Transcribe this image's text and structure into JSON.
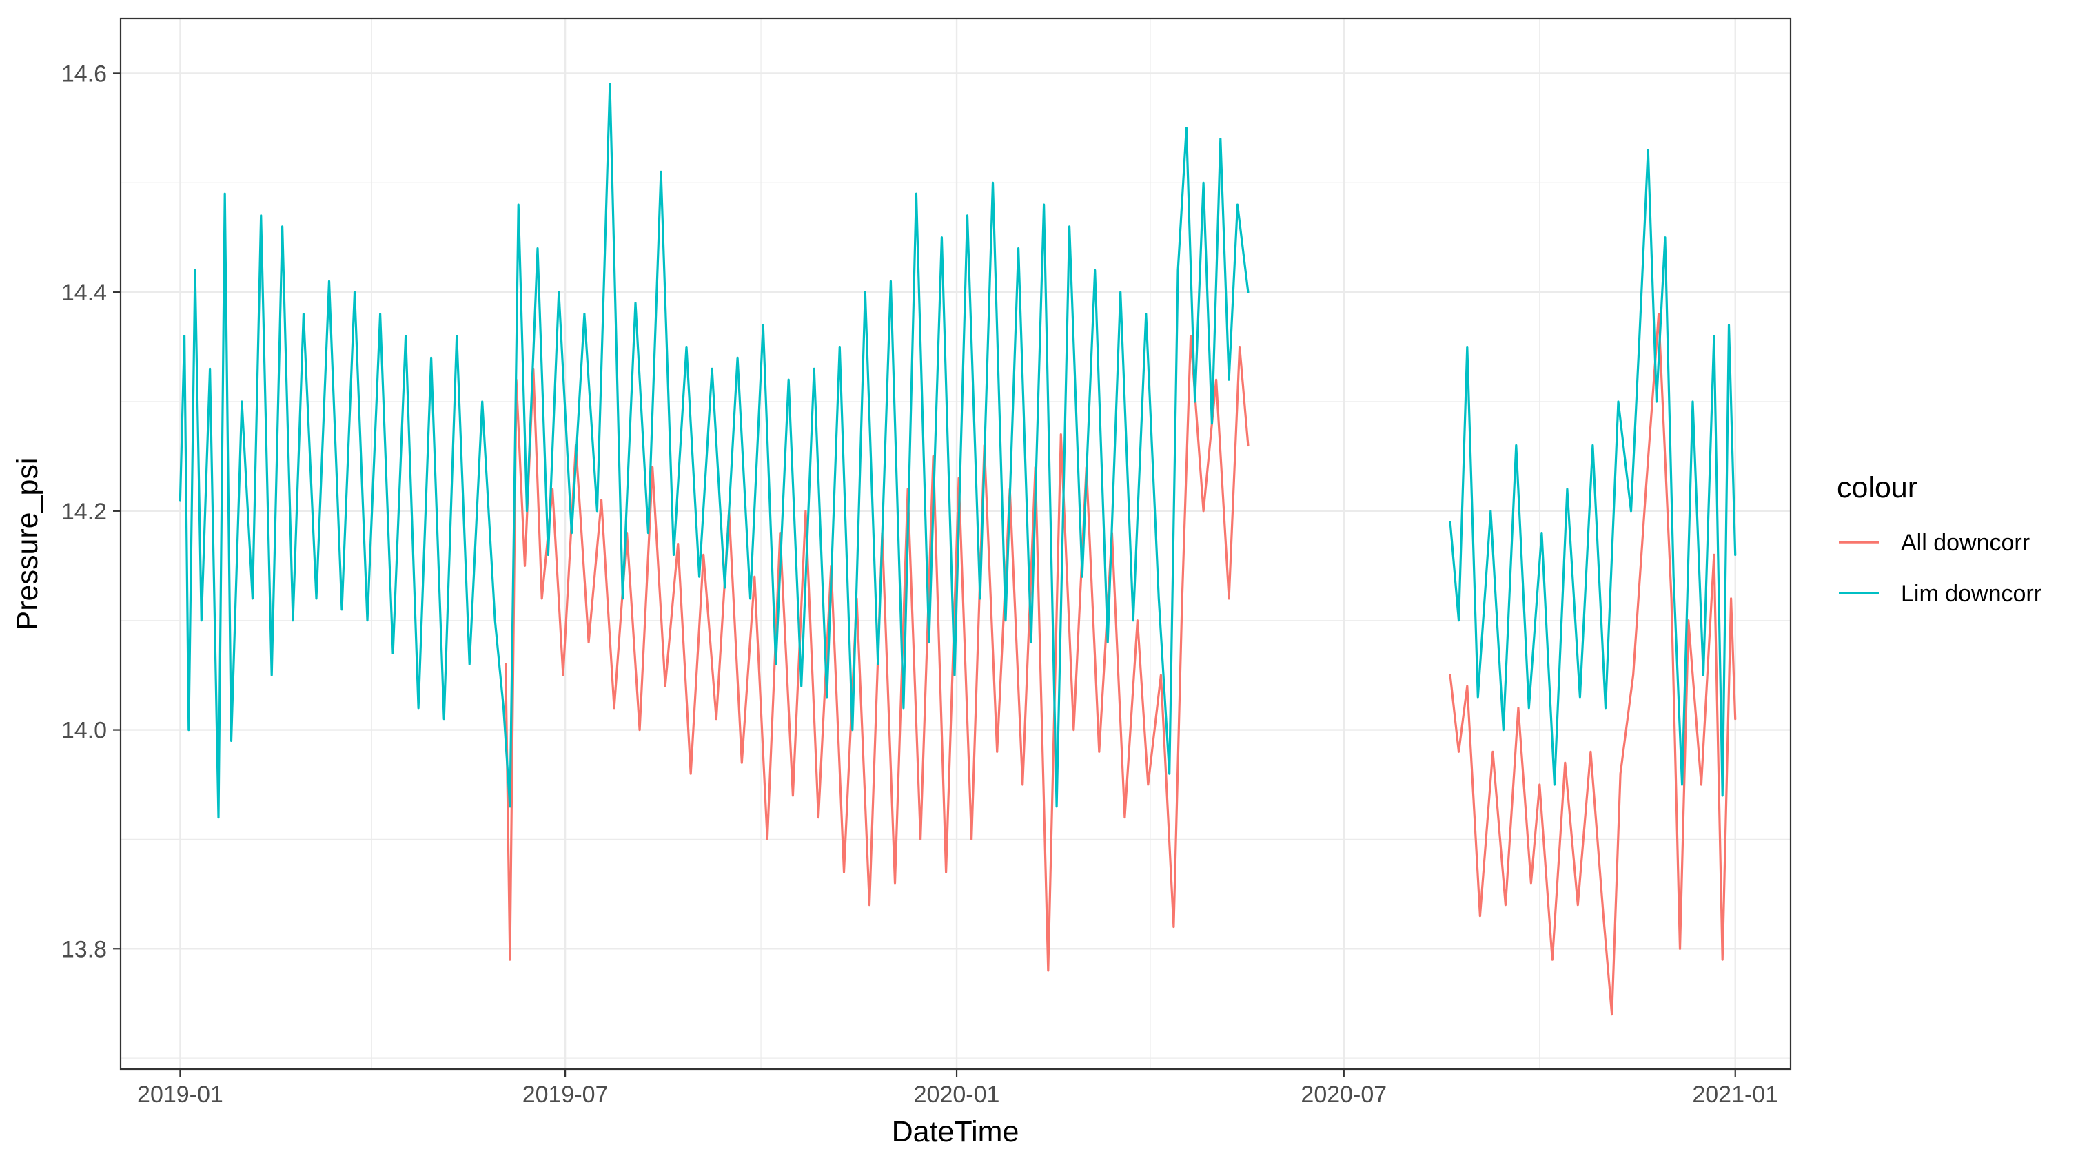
{
  "chart_data": {
    "type": "line",
    "xlabel": "DateTime",
    "ylabel": "Pressure_psi",
    "xlim": [
      "2018-12-04",
      "2021-01-27"
    ],
    "ylim": [
      13.69,
      14.65
    ],
    "x_ticks": [
      {
        "date": "2019-01-01",
        "label": "2019-01"
      },
      {
        "date": "2019-07-01",
        "label": "2019-07"
      },
      {
        "date": "2020-01-01",
        "label": "2020-01"
      },
      {
        "date": "2020-07-01",
        "label": "2020-07"
      },
      {
        "date": "2021-01-01",
        "label": "2021-01"
      }
    ],
    "x_minor_ticks": [
      "2019-04-01",
      "2019-10-01",
      "2020-04-01",
      "2020-10-01"
    ],
    "y_ticks": [
      13.8,
      14.0,
      14.2,
      14.4,
      14.6
    ],
    "y_minor_ticks": [
      13.7,
      13.9,
      14.1,
      14.3,
      14.5
    ],
    "grid": true,
    "legend": {
      "title": "colour",
      "position": "right"
    },
    "series": [
      {
        "name": "All downcorr",
        "color": "#F8766D",
        "segments": [
          [
            [
              "2019-06-03",
              14.06
            ],
            [
              "2019-06-05",
              13.79
            ],
            [
              "2019-06-08",
              14.32
            ],
            [
              "2019-06-12",
              14.15
            ],
            [
              "2019-06-16",
              14.33
            ],
            [
              "2019-06-20",
              14.12
            ],
            [
              "2019-06-25",
              14.22
            ],
            [
              "2019-06-30",
              14.05
            ],
            [
              "2019-07-06",
              14.26
            ],
            [
              "2019-07-12",
              14.08
            ],
            [
              "2019-07-18",
              14.21
            ],
            [
              "2019-07-24",
              14.02
            ],
            [
              "2019-07-30",
              14.18
            ],
            [
              "2019-08-05",
              14.0
            ],
            [
              "2019-08-11",
              14.24
            ],
            [
              "2019-08-17",
              14.04
            ],
            [
              "2019-08-23",
              14.17
            ],
            [
              "2019-08-29",
              13.96
            ],
            [
              "2019-09-04",
              14.16
            ],
            [
              "2019-09-10",
              14.01
            ],
            [
              "2019-09-16",
              14.2
            ],
            [
              "2019-09-22",
              13.97
            ],
            [
              "2019-09-28",
              14.14
            ],
            [
              "2019-10-04",
              13.9
            ],
            [
              "2019-10-10",
              14.18
            ],
            [
              "2019-10-16",
              13.94
            ],
            [
              "2019-10-22",
              14.2
            ],
            [
              "2019-10-28",
              13.92
            ],
            [
              "2019-11-03",
              14.15
            ],
            [
              "2019-11-09",
              13.87
            ],
            [
              "2019-11-15",
              14.12
            ],
            [
              "2019-11-21",
              13.84
            ],
            [
              "2019-11-27",
              14.18
            ],
            [
              "2019-12-03",
              13.86
            ],
            [
              "2019-12-09",
              14.22
            ],
            [
              "2019-12-15",
              13.9
            ],
            [
              "2019-12-21",
              14.25
            ],
            [
              "2019-12-27",
              13.87
            ],
            [
              "2020-01-02",
              14.23
            ],
            [
              "2020-01-08",
              13.9
            ],
            [
              "2020-01-14",
              14.26
            ],
            [
              "2020-01-20",
              13.98
            ],
            [
              "2020-01-26",
              14.22
            ],
            [
              "2020-02-01",
              13.95
            ],
            [
              "2020-02-07",
              14.24
            ],
            [
              "2020-02-13",
              13.78
            ],
            [
              "2020-02-19",
              14.27
            ],
            [
              "2020-02-25",
              14.0
            ],
            [
              "2020-03-02",
              14.24
            ],
            [
              "2020-03-08",
              13.98
            ],
            [
              "2020-03-14",
              14.18
            ],
            [
              "2020-03-20",
              13.92
            ],
            [
              "2020-03-26",
              14.1
            ],
            [
              "2020-03-31",
              13.95
            ],
            [
              "2020-04-06",
              14.05
            ],
            [
              "2020-04-12",
              13.82
            ],
            [
              "2020-04-16",
              14.12
            ],
            [
              "2020-04-20",
              14.36
            ],
            [
              "2020-04-26",
              14.2
            ],
            [
              "2020-05-02",
              14.32
            ],
            [
              "2020-05-08",
              14.12
            ],
            [
              "2020-05-13",
              14.35
            ],
            [
              "2020-05-17",
              14.26
            ]
          ],
          [
            [
              "2020-08-20",
              14.05
            ],
            [
              "2020-08-24",
              13.98
            ],
            [
              "2020-08-28",
              14.04
            ],
            [
              "2020-09-03",
              13.83
            ],
            [
              "2020-09-09",
              13.98
            ],
            [
              "2020-09-15",
              13.84
            ],
            [
              "2020-09-21",
              14.02
            ],
            [
              "2020-09-27",
              13.86
            ],
            [
              "2020-10-01",
              13.95
            ],
            [
              "2020-10-07",
              13.79
            ],
            [
              "2020-10-13",
              13.97
            ],
            [
              "2020-10-19",
              13.84
            ],
            [
              "2020-10-25",
              13.98
            ],
            [
              "2020-10-31",
              13.83
            ],
            [
              "2020-11-04",
              13.74
            ],
            [
              "2020-11-08",
              13.96
            ],
            [
              "2020-11-14",
              14.05
            ],
            [
              "2020-11-20",
              14.22
            ],
            [
              "2020-11-26",
              14.38
            ],
            [
              "2020-12-02",
              14.12
            ],
            [
              "2020-12-06",
              13.8
            ],
            [
              "2020-12-10",
              14.1
            ],
            [
              "2020-12-16",
              13.95
            ],
            [
              "2020-12-22",
              14.16
            ],
            [
              "2020-12-26",
              13.79
            ],
            [
              "2020-12-30",
              14.12
            ],
            [
              "2021-01-01",
              14.01
            ]
          ]
        ]
      },
      {
        "name": "Lim downcorr",
        "color": "#00BFC4",
        "segments": [
          [
            [
              "2019-01-01",
              14.21
            ],
            [
              "2019-01-03",
              14.36
            ],
            [
              "2019-01-05",
              14.0
            ],
            [
              "2019-01-08",
              14.42
            ],
            [
              "2019-01-11",
              14.1
            ],
            [
              "2019-01-15",
              14.33
            ],
            [
              "2019-01-19",
              13.92
            ],
            [
              "2019-01-22",
              14.49
            ],
            [
              "2019-01-25",
              13.99
            ],
            [
              "2019-01-30",
              14.3
            ],
            [
              "2019-02-04",
              14.12
            ],
            [
              "2019-02-08",
              14.47
            ],
            [
              "2019-02-13",
              14.05
            ],
            [
              "2019-02-18",
              14.46
            ],
            [
              "2019-02-23",
              14.1
            ],
            [
              "2019-02-28",
              14.38
            ],
            [
              "2019-03-06",
              14.12
            ],
            [
              "2019-03-12",
              14.41
            ],
            [
              "2019-03-18",
              14.11
            ],
            [
              "2019-03-24",
              14.4
            ],
            [
              "2019-03-30",
              14.1
            ],
            [
              "2019-04-05",
              14.38
            ],
            [
              "2019-04-11",
              14.07
            ],
            [
              "2019-04-17",
              14.36
            ],
            [
              "2019-04-23",
              14.02
            ],
            [
              "2019-04-29",
              14.34
            ],
            [
              "2019-05-05",
              14.01
            ],
            [
              "2019-05-11",
              14.36
            ],
            [
              "2019-05-17",
              14.06
            ],
            [
              "2019-05-23",
              14.3
            ],
            [
              "2019-05-29",
              14.1
            ],
            [
              "2019-06-02",
              14.02
            ],
            [
              "2019-06-05",
              13.93
            ],
            [
              "2019-06-09",
              14.48
            ],
            [
              "2019-06-13",
              14.2
            ],
            [
              "2019-06-18",
              14.44
            ],
            [
              "2019-06-23",
              14.16
            ],
            [
              "2019-06-28",
              14.4
            ],
            [
              "2019-07-04",
              14.18
            ],
            [
              "2019-07-10",
              14.38
            ],
            [
              "2019-07-16",
              14.2
            ],
            [
              "2019-07-22",
              14.59
            ],
            [
              "2019-07-28",
              14.12
            ],
            [
              "2019-08-03",
              14.39
            ],
            [
              "2019-08-09",
              14.18
            ],
            [
              "2019-08-15",
              14.51
            ],
            [
              "2019-08-21",
              14.16
            ],
            [
              "2019-08-27",
              14.35
            ],
            [
              "2019-09-02",
              14.14
            ],
            [
              "2019-09-08",
              14.33
            ],
            [
              "2019-09-14",
              14.13
            ],
            [
              "2019-09-20",
              14.34
            ],
            [
              "2019-09-26",
              14.12
            ],
            [
              "2019-10-02",
              14.37
            ],
            [
              "2019-10-08",
              14.06
            ],
            [
              "2019-10-14",
              14.32
            ],
            [
              "2019-10-20",
              14.04
            ],
            [
              "2019-10-26",
              14.33
            ],
            [
              "2019-11-01",
              14.03
            ],
            [
              "2019-11-07",
              14.35
            ],
            [
              "2019-11-13",
              14.0
            ],
            [
              "2019-11-19",
              14.4
            ],
            [
              "2019-11-25",
              14.06
            ],
            [
              "2019-12-01",
              14.41
            ],
            [
              "2019-12-07",
              14.02
            ],
            [
              "2019-12-13",
              14.49
            ],
            [
              "2019-12-19",
              14.08
            ],
            [
              "2019-12-25",
              14.45
            ],
            [
              "2019-12-31",
              14.05
            ],
            [
              "2020-01-06",
              14.47
            ],
            [
              "2020-01-12",
              14.12
            ],
            [
              "2020-01-18",
              14.5
            ],
            [
              "2020-01-24",
              14.1
            ],
            [
              "2020-01-30",
              14.44
            ],
            [
              "2020-02-05",
              14.08
            ],
            [
              "2020-02-11",
              14.48
            ],
            [
              "2020-02-17",
              13.93
            ],
            [
              "2020-02-23",
              14.46
            ],
            [
              "2020-02-29",
              14.14
            ],
            [
              "2020-03-06",
              14.42
            ],
            [
              "2020-03-12",
              14.08
            ],
            [
              "2020-03-18",
              14.4
            ],
            [
              "2020-03-24",
              14.1
            ],
            [
              "2020-03-30",
              14.38
            ],
            [
              "2020-04-05",
              14.12
            ],
            [
              "2020-04-10",
              13.96
            ],
            [
              "2020-04-14",
              14.42
            ],
            [
              "2020-04-18",
              14.55
            ],
            [
              "2020-04-22",
              14.3
            ],
            [
              "2020-04-26",
              14.5
            ],
            [
              "2020-04-30",
              14.28
            ],
            [
              "2020-05-04",
              14.54
            ],
            [
              "2020-05-08",
              14.32
            ],
            [
              "2020-05-12",
              14.48
            ],
            [
              "2020-05-17",
              14.4
            ]
          ],
          [
            [
              "2020-08-20",
              14.19
            ],
            [
              "2020-08-24",
              14.1
            ],
            [
              "2020-08-28",
              14.35
            ],
            [
              "2020-09-02",
              14.03
            ],
            [
              "2020-09-08",
              14.2
            ],
            [
              "2020-09-14",
              14.0
            ],
            [
              "2020-09-20",
              14.26
            ],
            [
              "2020-09-26",
              14.02
            ],
            [
              "2020-10-02",
              14.18
            ],
            [
              "2020-10-08",
              13.95
            ],
            [
              "2020-10-14",
              14.22
            ],
            [
              "2020-10-20",
              14.03
            ],
            [
              "2020-10-26",
              14.26
            ],
            [
              "2020-11-01",
              14.02
            ],
            [
              "2020-11-07",
              14.3
            ],
            [
              "2020-11-13",
              14.2
            ],
            [
              "2020-11-17",
              14.36
            ],
            [
              "2020-11-21",
              14.53
            ],
            [
              "2020-11-25",
              14.3
            ],
            [
              "2020-11-29",
              14.45
            ],
            [
              "2020-12-03",
              14.14
            ],
            [
              "2020-12-07",
              13.95
            ],
            [
              "2020-12-12",
              14.3
            ],
            [
              "2020-12-17",
              14.05
            ],
            [
              "2020-12-22",
              14.36
            ],
            [
              "2020-12-26",
              13.94
            ],
            [
              "2020-12-29",
              14.37
            ],
            [
              "2021-01-01",
              14.16
            ]
          ]
        ]
      }
    ]
  }
}
